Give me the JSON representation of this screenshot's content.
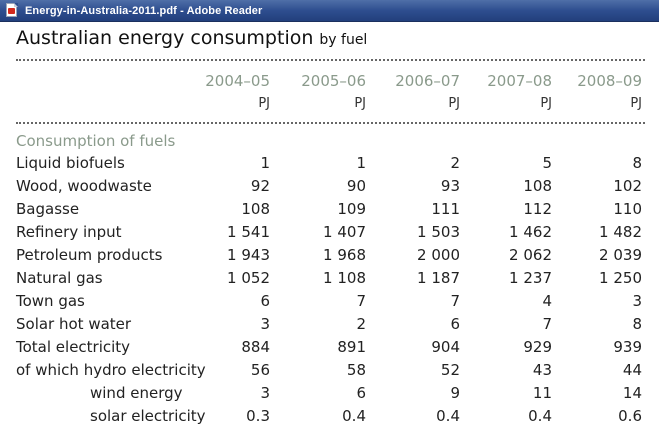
{
  "window": {
    "title": "Energy-in-Australia-2011.pdf - Adobe Reader",
    "icon": "pdf-document-icon"
  },
  "document": {
    "title": "Australian energy consumption",
    "subtitle": "by fuel",
    "years": [
      "2004–05",
      "2005–06",
      "2006–07",
      "2007–08",
      "2008–09"
    ],
    "unit": "PJ",
    "section": "Consumption of fuels",
    "rows": [
      {
        "label": "Liquid biofuels",
        "values": [
          "1",
          "1",
          "2",
          "5",
          "8"
        ]
      },
      {
        "label": "Wood, woodwaste",
        "values": [
          "92",
          "90",
          "93",
          "108",
          "102"
        ]
      },
      {
        "label": "Bagasse",
        "values": [
          "108",
          "109",
          "111",
          "112",
          "110"
        ]
      },
      {
        "label": "Refinery input",
        "values": [
          "1 541",
          "1 407",
          "1 503",
          "1 462",
          "1 482"
        ]
      },
      {
        "label": "Petroleum products",
        "values": [
          "1 943",
          "1 968",
          "2 000",
          "2 062",
          "2 039"
        ]
      },
      {
        "label": "Natural gas",
        "values": [
          "1 052",
          "1 108",
          "1 187",
          "1 237",
          "1 250"
        ]
      },
      {
        "label": "Town gas",
        "values": [
          "6",
          "7",
          "7",
          "4",
          "3"
        ]
      },
      {
        "label": "Solar hot water",
        "values": [
          "3",
          "2",
          "6",
          "7",
          "8"
        ]
      },
      {
        "label": "Total electricity",
        "values": [
          "884",
          "891",
          "904",
          "929",
          "939"
        ]
      },
      {
        "label": "of which hydro electricity",
        "values": [
          "56",
          "58",
          "52",
          "43",
          "44"
        ]
      },
      {
        "label": "wind energy",
        "values": [
          "3",
          "6",
          "9",
          "11",
          "14"
        ]
      },
      {
        "label": "solar electricity",
        "values": [
          "0.3",
          "0.4",
          "0.4",
          "0.4",
          "0.6"
        ]
      }
    ]
  },
  "colors": {
    "titlebar": "#2e4e8f",
    "heading_accent": "#8a9a8b",
    "text": "#222222"
  }
}
